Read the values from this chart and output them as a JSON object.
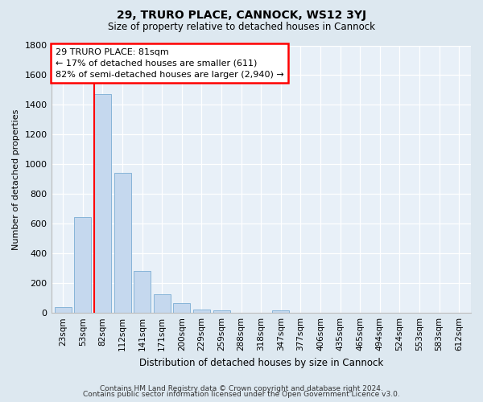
{
  "title1": "29, TRURO PLACE, CANNOCK, WS12 3YJ",
  "title2": "Size of property relative to detached houses in Cannock",
  "xlabel": "Distribution of detached houses by size in Cannock",
  "ylabel": "Number of detached properties",
  "bar_labels": [
    "23sqm",
    "53sqm",
    "82sqm",
    "112sqm",
    "141sqm",
    "171sqm",
    "200sqm",
    "229sqm",
    "259sqm",
    "288sqm",
    "318sqm",
    "347sqm",
    "377sqm",
    "406sqm",
    "435sqm",
    "465sqm",
    "494sqm",
    "524sqm",
    "553sqm",
    "583sqm",
    "612sqm"
  ],
  "bar_values": [
    40,
    645,
    1475,
    940,
    285,
    125,
    65,
    22,
    15,
    0,
    0,
    15,
    0,
    0,
    0,
    0,
    0,
    0,
    0,
    0,
    0
  ],
  "bar_color": "#c5d8ee",
  "bar_edge_color": "#7aadd4",
  "annotation_text": "29 TRURO PLACE: 81sqm\n← 17% of detached houses are smaller (611)\n82% of semi-detached houses are larger (2,940) →",
  "vline_x_index": 2,
  "ylim": [
    0,
    1800
  ],
  "yticks": [
    0,
    200,
    400,
    600,
    800,
    1000,
    1200,
    1400,
    1600,
    1800
  ],
  "footer1": "Contains HM Land Registry data © Crown copyright and database right 2024.",
  "footer2": "Contains public sector information licensed under the Open Government Licence v3.0.",
  "bg_color": "#dde8f0",
  "plot_bg_color": "#e8f0f8"
}
